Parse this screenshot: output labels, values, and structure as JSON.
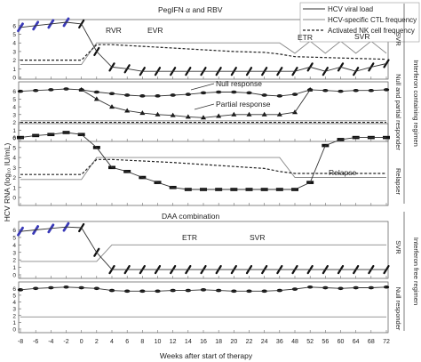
{
  "chart_data": {
    "type": "line",
    "x_ticks": [
      -8,
      -6,
      -4,
      -2,
      0,
      2,
      4,
      6,
      8,
      10,
      12,
      14,
      16,
      18,
      20,
      22,
      24,
      36,
      48,
      52,
      56,
      60,
      64,
      68,
      72
    ],
    "xlabel": "Weeks after start of therapy",
    "ylabel": "HCV RNA (log₁₀ IU/mL)",
    "legend": {
      "position": "top-right",
      "items": [
        {
          "label": "HCV viral load",
          "style": "solid"
        },
        {
          "label": "HCV-specific CTL frequency",
          "style": "solid-gray"
        },
        {
          "label": "Activated NK cell frequency",
          "style": "dashed"
        }
      ]
    },
    "group_labels": {
      "ifn": "Interferon containing regimen",
      "ifn_free": "Interferon free regimen"
    },
    "panels": [
      {
        "id": "svr",
        "y_ticks": [
          0,
          1,
          2,
          3,
          4,
          5,
          6
        ],
        "side_label": "SVR",
        "header": "PegIFN α and RBV",
        "annotations": [
          "RVR",
          "EVR",
          "ETR",
          "SVR"
        ],
        "viral_load": {
          "x": [
            -8,
            -6,
            -4,
            -2,
            0,
            2,
            4,
            6,
            8,
            10,
            12,
            14,
            16,
            18,
            20,
            22,
            24,
            36,
            48,
            52,
            56,
            60,
            64,
            68,
            72
          ],
          "y": [
            5.8,
            6.0,
            6.2,
            6.4,
            6.2,
            3.0,
            1.2,
            1.0,
            0.7,
            0.7,
            0.7,
            0.7,
            0.7,
            0.7,
            0.7,
            0.7,
            0.7,
            0.7,
            0.7,
            1.2,
            0.7,
            1.2,
            0.7,
            1.2,
            1.6
          ],
          "undetectable_from_week": 4
        },
        "ctl_frequency": {
          "x": [
            -8,
            0,
            2,
            4,
            24,
            36,
            48,
            52,
            56,
            60,
            64,
            68,
            72
          ],
          "y": [
            1.5,
            1.5,
            4.0,
            4.0,
            4.0,
            4.0,
            2.8,
            4.2,
            2.8,
            4.2,
            2.8,
            4.2,
            2.8
          ]
        },
        "nk_frequency": {
          "x": [
            -8,
            0,
            2,
            4,
            8,
            12,
            16,
            20,
            24,
            36,
            48,
            56,
            64,
            72
          ],
          "y": [
            2.0,
            2.0,
            3.8,
            3.8,
            3.6,
            3.4,
            3.2,
            3.0,
            2.9,
            2.7,
            2.4,
            2.3,
            2.2,
            2.1
          ]
        }
      },
      {
        "id": "null-partial",
        "y_ticks": [
          0,
          1,
          2,
          3,
          4,
          5,
          6
        ],
        "side_label": "Null and partial responder",
        "annotations": [
          "Null response",
          "Partial response"
        ],
        "viral_load_null": {
          "x": [
            -8,
            -6,
            -4,
            -2,
            0,
            2,
            4,
            6,
            8,
            10,
            12,
            14,
            16,
            18,
            20,
            22,
            24,
            36,
            48,
            52,
            56,
            60,
            64,
            68,
            72
          ],
          "y": [
            6.0,
            6.1,
            6.2,
            6.3,
            6.2,
            5.9,
            5.7,
            5.5,
            5.4,
            5.4,
            5.5,
            5.6,
            5.8,
            5.9,
            5.9,
            5.8,
            5.5,
            5.4,
            5.6,
            6.2,
            6.1,
            6.0,
            6.1,
            6.1,
            6.2
          ]
        },
        "viral_load_partial": {
          "x": [
            0,
            2,
            4,
            6,
            8,
            10,
            12,
            14,
            16,
            18,
            20,
            22,
            24,
            36,
            48,
            52
          ],
          "y": [
            6.2,
            5.0,
            4.0,
            3.5,
            3.2,
            3.0,
            2.9,
            2.7,
            2.6,
            2.8,
            3.0,
            3.0,
            3.0,
            3.0,
            3.3,
            6.2
          ]
        },
        "ctl_frequency": {
          "y_constant": 2.2
        },
        "nk_frequency": {
          "y_constant": 2.0
        }
      },
      {
        "id": "relapse",
        "y_ticks": [
          0,
          1,
          2,
          3,
          4,
          5,
          6
        ],
        "side_label": "Relapser",
        "annotations": [
          "Relapse"
        ],
        "viral_load": {
          "x": [
            -8,
            -6,
            -4,
            -2,
            0,
            2,
            4,
            6,
            8,
            10,
            12,
            14,
            16,
            18,
            20,
            22,
            24,
            36,
            48,
            52,
            56,
            60,
            64,
            68,
            72
          ],
          "y": [
            6.0,
            6.2,
            6.3,
            6.5,
            6.3,
            5.0,
            3.0,
            2.6,
            2.0,
            1.5,
            1.0,
            0.8,
            0.8,
            0.8,
            0.8,
            0.8,
            0.8,
            0.8,
            0.8,
            1.5,
            5.2,
            5.8,
            6.0,
            6.0,
            6.0
          ]
        },
        "ctl_frequency": {
          "x": [
            -8,
            0,
            2,
            4,
            24,
            36,
            48,
            52,
            72
          ],
          "y": [
            1.8,
            1.8,
            4.0,
            4.0,
            4.0,
            4.0,
            2.0,
            2.0,
            2.0
          ]
        },
        "nk_frequency": {
          "x": [
            -8,
            0,
            2,
            4,
            12,
            20,
            24,
            36,
            48,
            52,
            72
          ],
          "y": [
            2.3,
            2.3,
            3.8,
            3.8,
            3.5,
            3.1,
            2.9,
            2.6,
            2.4,
            2.4,
            2.4
          ]
        }
      },
      {
        "id": "daa-svr",
        "y_ticks": [
          0,
          1,
          2,
          3,
          4,
          5,
          6
        ],
        "side_label": "SVR",
        "header": "DAA combination",
        "annotations": [
          "ETR",
          "SVR"
        ],
        "viral_load": {
          "x": [
            -8,
            -6,
            -4,
            -2,
            0,
            2,
            4,
            6,
            8,
            10,
            12,
            14,
            16,
            18,
            20,
            22,
            24,
            36,
            48,
            52,
            56,
            60,
            64,
            68,
            72
          ],
          "y": [
            5.8,
            6.0,
            6.2,
            6.4,
            6.3,
            3.0,
            0.7,
            0.7,
            0.7,
            0.7,
            0.7,
            0.7,
            0.7,
            0.7,
            0.7,
            0.7,
            0.7,
            0.7,
            0.7,
            0.7,
            0.7,
            0.7,
            0.7,
            0.7,
            0.7
          ],
          "undetectable_from_week": 4
        },
        "ctl_frequency": {
          "x": [
            -8,
            0,
            2,
            4,
            72
          ],
          "y": [
            1.8,
            1.8,
            1.8,
            4.0,
            4.0
          ]
        }
      },
      {
        "id": "null-responder",
        "y_ticks": [
          0,
          1,
          2,
          3,
          4,
          5,
          6
        ],
        "side_label": "Null responder",
        "viral_load": {
          "x": [
            -8,
            -6,
            -4,
            -2,
            0,
            2,
            4,
            6,
            8,
            10,
            12,
            14,
            16,
            18,
            20,
            22,
            24,
            36,
            48,
            52,
            56,
            60,
            64,
            68,
            72
          ],
          "y": [
            5.8,
            6.0,
            6.1,
            6.2,
            6.1,
            6.0,
            5.7,
            5.6,
            5.6,
            5.6,
            5.7,
            5.7,
            5.8,
            5.7,
            5.6,
            5.6,
            5.6,
            5.7,
            5.9,
            6.2,
            6.1,
            6.0,
            6.1,
            6.1,
            6.2
          ]
        },
        "ctl_frequency": {
          "y_constant": 1.8
        }
      }
    ]
  }
}
